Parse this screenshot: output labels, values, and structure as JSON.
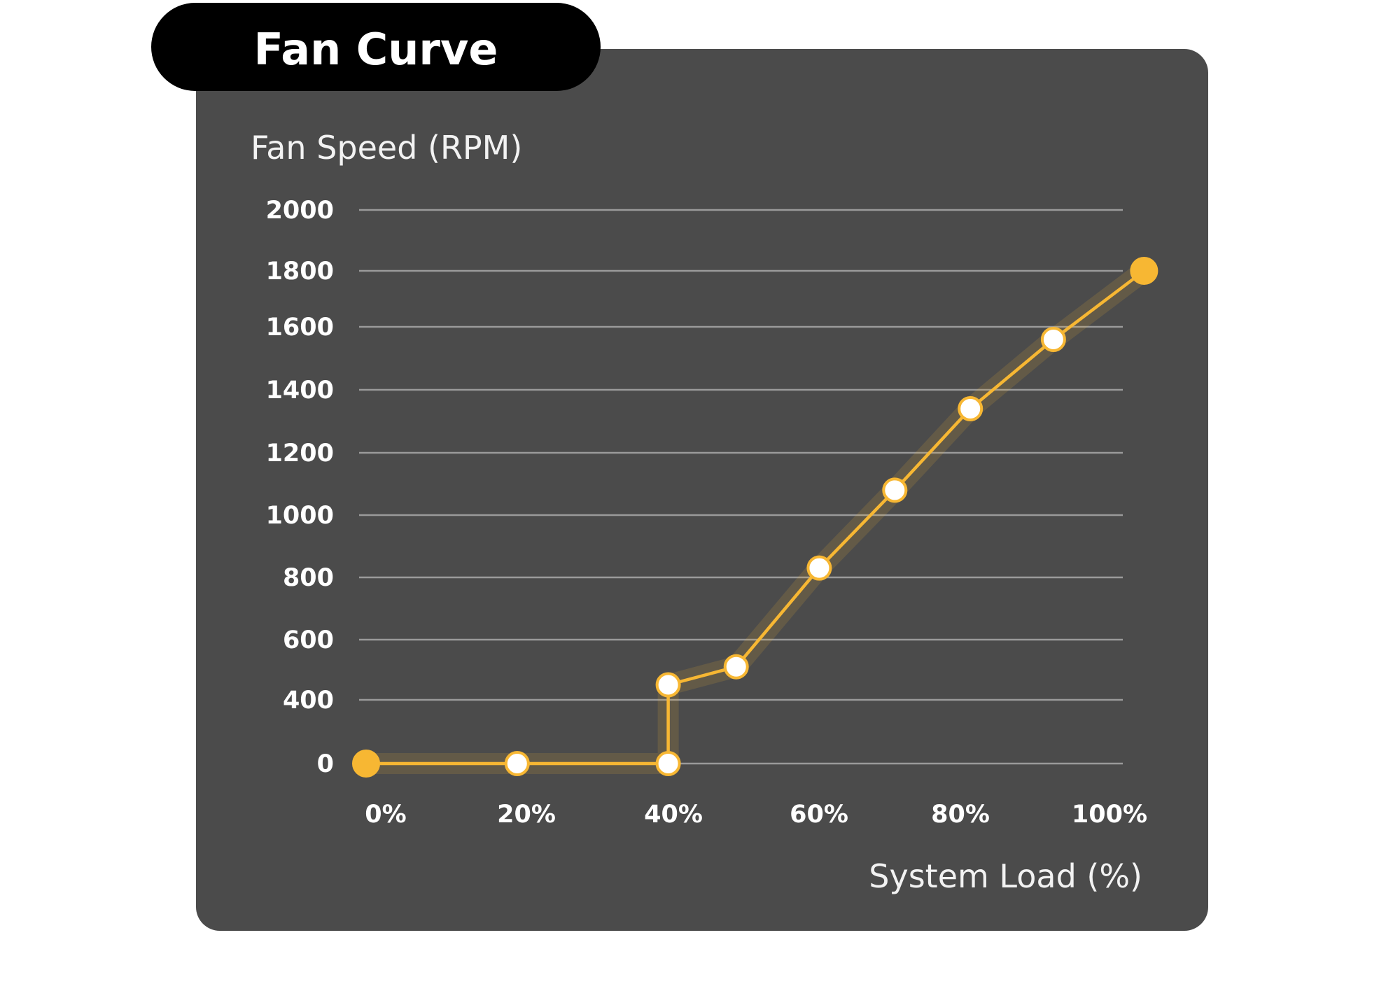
{
  "title": "Fan Curve",
  "colors": {
    "panel": "#4b4b4b",
    "accent": "#f7b733",
    "title_pill": "#000000",
    "open_point_fill": "#ffffff"
  },
  "chart_data": {
    "type": "line",
    "title": "Fan Curve",
    "ylabel": "Fan Speed (RPM)",
    "xlabel": "System Load (%)",
    "y_ticks": [
      "2000",
      "1800",
      "1600",
      "1400",
      "1200",
      "1000",
      "800",
      "600",
      "400",
      "0"
    ],
    "x_ticks": [
      "0%",
      "20%",
      "40%",
      "60%",
      "80%",
      "100%"
    ],
    "grid": true,
    "legend": "none",
    "series": [
      {
        "points": [
          {
            "x": 0,
            "y": 0,
            "style": "filled"
          },
          {
            "x": 20,
            "y": 0,
            "style": "open"
          },
          {
            "x": 40,
            "y": 0,
            "style": "open"
          },
          {
            "x": 40,
            "y": 450,
            "style": "open"
          },
          {
            "x": 49,
            "y": 510,
            "style": "open"
          },
          {
            "x": 60,
            "y": 830,
            "style": "open"
          },
          {
            "x": 70,
            "y": 1080,
            "style": "open"
          },
          {
            "x": 80,
            "y": 1340,
            "style": "open"
          },
          {
            "x": 91,
            "y": 1560,
            "style": "open"
          },
          {
            "x": 103,
            "y": 1800,
            "style": "filled"
          }
        ]
      }
    ]
  }
}
